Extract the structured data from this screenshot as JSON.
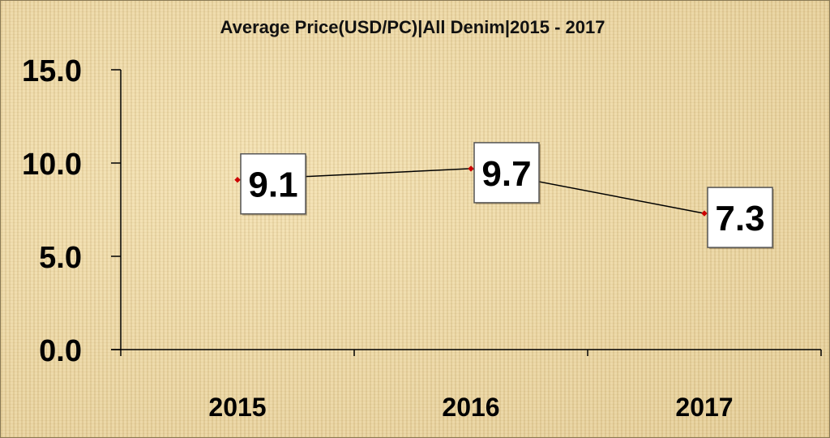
{
  "chart_data": {
    "type": "line",
    "title": "Average Price(USD/PC)|All Denim|2015 - 2017",
    "xlabel": "",
    "ylabel": "",
    "categories": [
      "2015",
      "2016",
      "2017"
    ],
    "series": [
      {
        "values": [
          9.1,
          9.7,
          7.3
        ],
        "labels": [
          "9.1",
          "9.7",
          "7.3"
        ]
      }
    ],
    "ylim": [
      0,
      15
    ],
    "yticks": [
      "0.0",
      "5.0",
      "10.0",
      "15.0"
    ],
    "ytick_values": [
      0,
      5,
      10,
      15
    ],
    "grid": false,
    "legend": "none",
    "colors": {
      "line": "#000000",
      "marker": "#cc0000",
      "background": "#ead6a4"
    }
  }
}
